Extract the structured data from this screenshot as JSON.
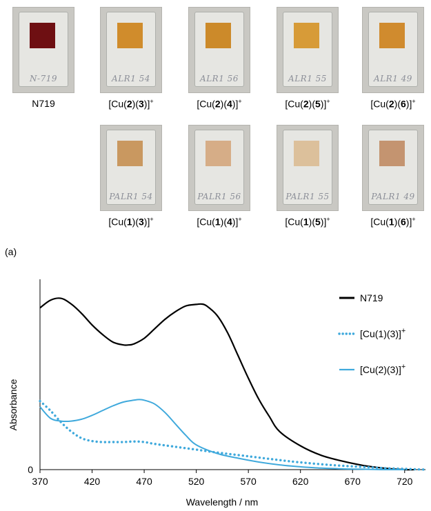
{
  "photos": [
    {
      "caption": "N719",
      "color": "#6e0f12",
      "scribble": "N-719"
    },
    {
      "caption": "[Cu(2)(3)]+",
      "color": "#d08c2c",
      "scribble": "ALR1 54"
    },
    {
      "caption": "[Cu(2)(4)]+",
      "color": "#cc8a2a",
      "scribble": "ALR1 56"
    },
    {
      "caption": "[Cu(2)(5)]+",
      "color": "#d79b38",
      "scribble": "ALR1 55"
    },
    {
      "caption": "[Cu(2)(6)]+",
      "color": "#d08b2e",
      "scribble": "ALR1 49"
    },
    {
      "caption": "[Cu(1)(3)]+",
      "color": "#c99860",
      "scribble": "PALR1 54"
    },
    {
      "caption": "[Cu(1)(4)]+",
      "color": "#d6ad87",
      "scribble": "PALR1 56"
    },
    {
      "caption": "[Cu(1)(5)]+",
      "color": "#dcc09b",
      "scribble": "PALR1 55"
    },
    {
      "caption": "[Cu(1)(6)]+",
      "color": "#c49470",
      "scribble": "PALR1 49"
    }
  ],
  "panel_label": "(a)",
  "chart_data": {
    "type": "line",
    "xlabel": "Wavelength / nm",
    "ylabel": "Absorbance",
    "xlim": [
      370,
      740
    ],
    "ylim": [
      0,
      1.0
    ],
    "x_ticks": [
      370,
      420,
      470,
      520,
      570,
      620,
      670,
      720
    ],
    "y_ticks": [
      0
    ],
    "grid": false,
    "legend_position": "top-right",
    "series": [
      {
        "name": "N719",
        "color": "#000000",
        "style": "solid",
        "x": [
          370,
          380,
          390,
          400,
          410,
          420,
          430,
          440,
          450,
          455,
          460,
          470,
          480,
          490,
          500,
          510,
          520,
          525,
          530,
          540,
          550,
          560,
          570,
          580,
          590,
          600,
          620,
          640,
          660,
          680,
          700,
          720,
          730
        ],
        "y": [
          0.85,
          0.89,
          0.9,
          0.87,
          0.82,
          0.76,
          0.71,
          0.67,
          0.655,
          0.655,
          0.66,
          0.69,
          0.74,
          0.79,
          0.83,
          0.86,
          0.868,
          0.87,
          0.86,
          0.81,
          0.72,
          0.6,
          0.48,
          0.37,
          0.28,
          0.2,
          0.125,
          0.075,
          0.045,
          0.022,
          0.008,
          0.0,
          0.0
        ]
      },
      {
        "name": "[Cu(1)(3)]+",
        "color": "#3fa9dc",
        "style": "dotted",
        "x": [
          370,
          380,
          390,
          400,
          410,
          420,
          430,
          440,
          450,
          460,
          470,
          480,
          500,
          520,
          540,
          570,
          600,
          620,
          650,
          680,
          700,
          720,
          740
        ],
        "y": [
          0.36,
          0.31,
          0.25,
          0.2,
          0.165,
          0.15,
          0.145,
          0.145,
          0.145,
          0.148,
          0.145,
          0.135,
          0.12,
          0.105,
          0.09,
          0.07,
          0.05,
          0.038,
          0.024,
          0.014,
          0.008,
          0.004,
          0.0
        ]
      },
      {
        "name": "[Cu(2)(3)]+",
        "color": "#3fa9dc",
        "style": "solid",
        "x": [
          370,
          380,
          390,
          400,
          410,
          420,
          430,
          440,
          450,
          460,
          465,
          470,
          480,
          490,
          500,
          510,
          520,
          540,
          560,
          580,
          600,
          620,
          640,
          660,
          680,
          700,
          720
        ],
        "y": [
          0.33,
          0.27,
          0.255,
          0.255,
          0.265,
          0.285,
          0.31,
          0.335,
          0.355,
          0.365,
          0.368,
          0.365,
          0.345,
          0.3,
          0.24,
          0.18,
          0.13,
          0.085,
          0.06,
          0.04,
          0.025,
          0.015,
          0.008,
          0.004,
          0.002,
          0.0,
          0.0
        ]
      }
    ]
  }
}
